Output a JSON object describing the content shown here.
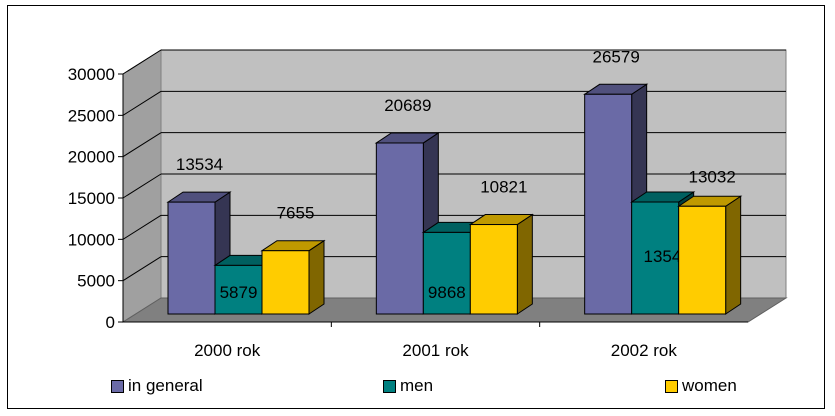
{
  "chart_data": {
    "type": "bar",
    "categories": [
      "2000 rok",
      "2001 rok",
      "2002 rok"
    ],
    "series": [
      {
        "name": "in general",
        "values": [
          13534,
          20689,
          26579
        ],
        "color": "#6A6AA6"
      },
      {
        "name": "men",
        "values": [
          5879,
          9868,
          13547
        ],
        "color": "#008080"
      },
      {
        "name": "women",
        "values": [
          7655,
          10821,
          13032
        ],
        "color": "#FFCC00"
      }
    ],
    "ylim": [
      0,
      30000
    ],
    "y_ticks": [
      "0",
      "5000",
      "10000",
      "15000",
      "20000",
      "25000",
      "30000"
    ],
    "grid": true,
    "legend_position": "bottom",
    "style": "3d-clustered-column"
  }
}
